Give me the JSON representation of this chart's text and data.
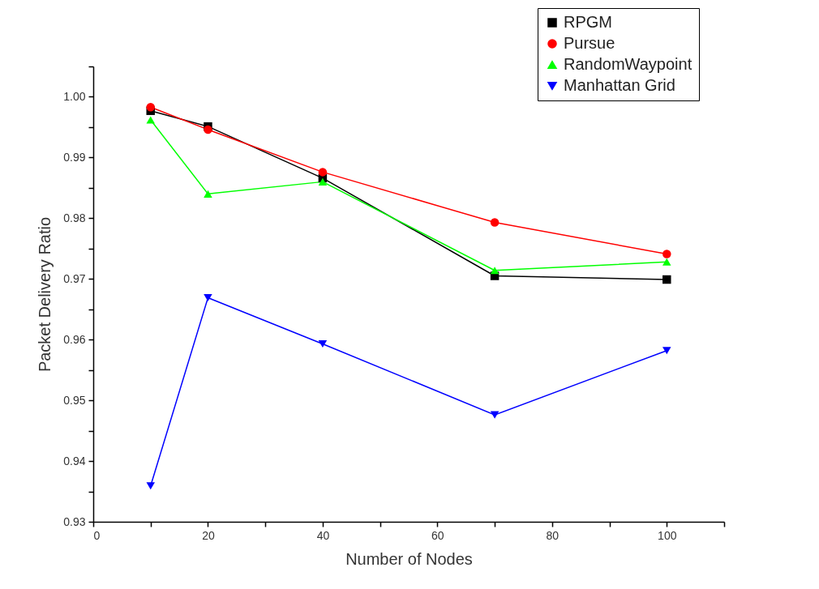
{
  "chart_data": {
    "type": "line",
    "xlabel": "Number of Nodes",
    "ylabel": "Packet Delivery Ratio",
    "x": [
      10,
      20,
      40,
      70,
      100
    ],
    "series": [
      {
        "name": "RPGM",
        "color": "#000000",
        "marker": "square",
        "values": [
          0.9977,
          0.9951,
          0.9866,
          0.9705,
          0.9699
        ]
      },
      {
        "name": "Pursue",
        "color": "#ff0000",
        "marker": "circle",
        "values": [
          0.9983,
          0.9946,
          0.9876,
          0.9793,
          0.9741
        ]
      },
      {
        "name": "RandomWaypoint",
        "color": "#00ff00",
        "marker": "triangle",
        "values": [
          0.9962,
          0.984,
          0.986,
          0.9714,
          0.9728
        ]
      },
      {
        "name": "Manhattan Grid",
        "color": "#0000ff",
        "marker": "triangle-down",
        "values": [
          0.9359,
          0.9669,
          0.9593,
          0.9476,
          0.9582
        ]
      }
    ],
    "xlim": [
      0,
      110
    ],
    "xticks": [
      0,
      {
        "value": 10,
        "label": null
      },
      20,
      {
        "value": 30,
        "label": null
      },
      40,
      {
        "value": 50,
        "label": null
      },
      60,
      {
        "value": 70,
        "label": null
      },
      80,
      {
        "value": 90,
        "label": null
      },
      100,
      {
        "value": 110,
        "label": null
      }
    ],
    "ylim": [
      0.93,
      1.005
    ],
    "yticks": [
      0.93,
      {
        "value": 0.935,
        "label": null
      },
      0.94,
      {
        "value": 0.945,
        "label": null
      },
      0.95,
      {
        "value": 0.955,
        "label": null
      },
      0.96,
      {
        "value": 0.965,
        "label": null
      },
      0.97,
      {
        "value": 0.975,
        "label": null
      },
      0.98,
      {
        "value": 0.985,
        "label": null
      },
      0.99,
      {
        "value": 0.995,
        "label": null
      },
      {
        "value": 1,
        "label": "1.00"
      },
      {
        "value": 1.005,
        "label": null
      }
    ],
    "legend": "top right",
    "grid": false,
    "line_style": "solid"
  }
}
